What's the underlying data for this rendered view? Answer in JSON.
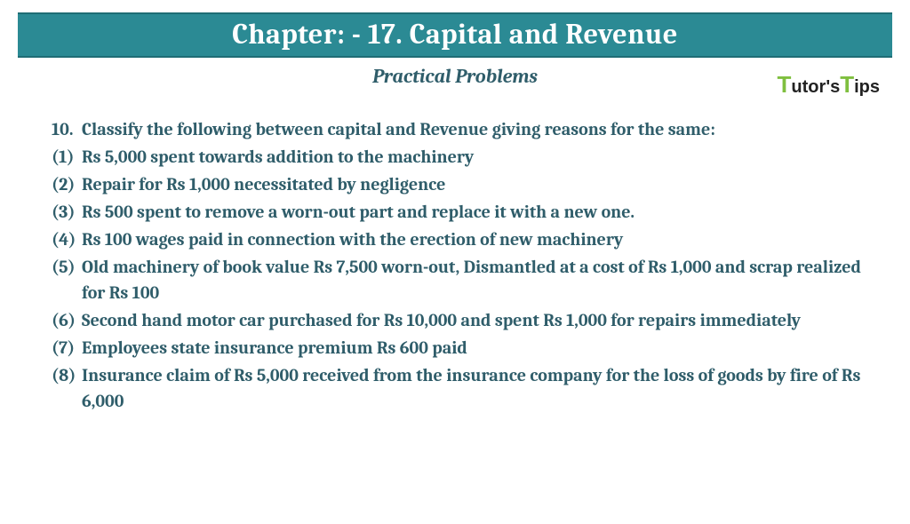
{
  "header": {
    "title": "Chapter: - 17. Capital and Revenue",
    "subtitle": "Practical Problems"
  },
  "logo": {
    "t1": "T",
    "utors": "utor",
    "apos": "'s",
    "t2": "T",
    "ips": "ips"
  },
  "question": {
    "number": "10.",
    "text": "Classify the following between capital and Revenue giving reasons for the same:"
  },
  "items": [
    {
      "num": "(1)",
      "txt": "Rs 5,000 spent towards addition to the machinery"
    },
    {
      "num": "(2)",
      "txt": "Repair for Rs 1,000 necessitated by negligence"
    },
    {
      "num": "(3)",
      "txt": "Rs 500 spent to remove a worn-out part and replace it with a new one."
    },
    {
      "num": "(4)",
      "txt": "Rs 100 wages paid in connection with the erection of new machinery"
    },
    {
      "num": "(5)",
      "txt": "Old machinery of book value Rs 7,500 worn-out, Dismantled at a cost of Rs 1,000 and scrap realized for Rs 100"
    },
    {
      "num": "(6)",
      "txt": "Second hand motor car purchased for Rs 10,000 and spent Rs 1,000 for repairs immediately"
    },
    {
      "num": "(7)",
      "txt": "Employees state insurance premium Rs 600 paid"
    },
    {
      "num": "(8)",
      "txt": "Insurance claim of Rs 5,000 received from the insurance company for the loss of goods by fire of Rs 6,000"
    }
  ],
  "colors": {
    "header_bg": "#2b8a94",
    "header_border": "#1f6d75",
    "text_color": "#2f5d6a",
    "logo_green": "#7fbf3f",
    "background": "#ffffff"
  }
}
